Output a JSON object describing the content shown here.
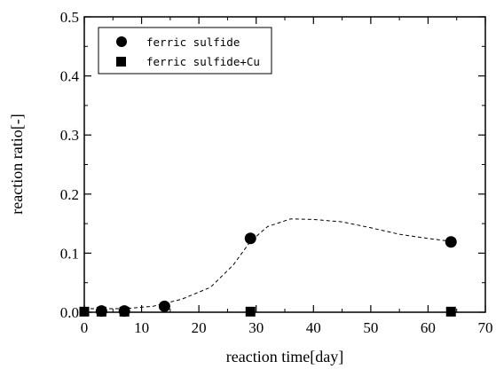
{
  "chart_data": {
    "type": "scatter",
    "xlabel": "reaction time[day]",
    "ylabel": "reaction ratio[-]",
    "xlim": [
      0,
      70
    ],
    "ylim": [
      0,
      0.5
    ],
    "x_ticks": [
      "0",
      "10",
      "20",
      "30",
      "40",
      "50",
      "60",
      "70"
    ],
    "y_ticks": [
      "0.0",
      "0.1",
      "0.2",
      "0.3",
      "0.4",
      "0.5"
    ],
    "grid": false,
    "legend_position": "top-left",
    "series": [
      {
        "name": "ferric sulfide",
        "marker": "circle",
        "color": "#000000",
        "points": [
          {
            "x": 3,
            "y": 0.002
          },
          {
            "x": 7,
            "y": 0.002
          },
          {
            "x": 14,
            "y": 0.01
          },
          {
            "x": 29,
            "y": 0.125
          },
          {
            "x": 64,
            "y": 0.119
          }
        ]
      },
      {
        "name": "ferric sulfide+Cu",
        "marker": "square",
        "color": "#000000",
        "points": [
          {
            "x": 0,
            "y": 0.001
          },
          {
            "x": 3,
            "y": 0.001
          },
          {
            "x": 7,
            "y": 0.001
          },
          {
            "x": 29,
            "y": 0.001
          },
          {
            "x": 64,
            "y": 0.001
          }
        ]
      }
    ],
    "trend_line": {
      "style": "dashed",
      "color": "#000000",
      "points": [
        {
          "x": 0,
          "y": 0.006
        },
        {
          "x": 7,
          "y": 0.006
        },
        {
          "x": 12,
          "y": 0.01
        },
        {
          "x": 17,
          "y": 0.022
        },
        {
          "x": 22,
          "y": 0.042
        },
        {
          "x": 26,
          "y": 0.08
        },
        {
          "x": 29,
          "y": 0.12
        },
        {
          "x": 32,
          "y": 0.145
        },
        {
          "x": 36,
          "y": 0.158
        },
        {
          "x": 40,
          "y": 0.157
        },
        {
          "x": 45,
          "y": 0.153
        },
        {
          "x": 50,
          "y": 0.143
        },
        {
          "x": 55,
          "y": 0.132
        },
        {
          "x": 60,
          "y": 0.125
        },
        {
          "x": 64,
          "y": 0.12
        }
      ]
    }
  }
}
